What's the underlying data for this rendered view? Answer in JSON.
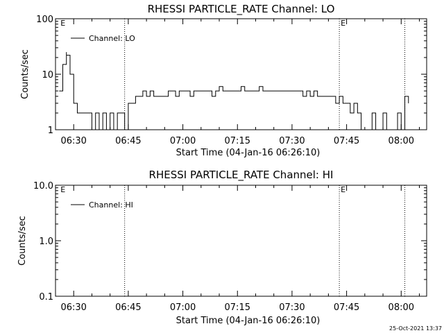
{
  "footer": {
    "timestamp": "25-Oct-2021 13:37"
  },
  "chart_data": [
    {
      "type": "line",
      "title": "RHESSI PARTICLE_RATE Channel: LO",
      "xlabel": "Start Time (04-Jan-16 06:26:10)",
      "ylabel": "Counts/sec",
      "yscale": "log",
      "ylim": [
        1,
        100
      ],
      "xlim": [
        "06:25",
        "08:07"
      ],
      "yticks": [
        "1",
        "10",
        "100"
      ],
      "xticks": [
        "06:30",
        "06:45",
        "07:00",
        "07:15",
        "07:30",
        "07:45",
        "08:00"
      ],
      "legend": {
        "position": "top-left",
        "entries": [
          "Channel: LO"
        ]
      },
      "event_flags": [
        {
          "time": "06:26",
          "label": "E"
        },
        {
          "time": "07:43",
          "label": "E"
        }
      ],
      "vlines": [
        "06:44",
        "07:43",
        "08:01"
      ],
      "series": [
        {
          "name": "Channel: LO",
          "x": [
            "06:26",
            "06:27",
            "06:28",
            "06:28",
            "06:29",
            "06:30",
            "06:31",
            "06:32",
            "06:33",
            "06:34",
            "06:35",
            "06:36",
            "06:37",
            "06:38",
            "06:39",
            "06:40",
            "06:41",
            "06:42",
            "06:43",
            "06:44",
            "06:45",
            "06:46",
            "06:47",
            "06:48",
            "06:49",
            "06:50",
            "06:51",
            "06:52",
            "06:53",
            "06:54",
            "06:55",
            "06:56",
            "06:57",
            "06:58",
            "06:59",
            "07:00",
            "07:01",
            "07:02",
            "07:03",
            "07:04",
            "07:05",
            "07:06",
            "07:07",
            "07:08",
            "07:09",
            "07:10",
            "07:11",
            "07:12",
            "07:13",
            "07:14",
            "07:15",
            "07:16",
            "07:17",
            "07:18",
            "07:19",
            "07:20",
            "07:21",
            "07:22",
            "07:23",
            "07:24",
            "07:25",
            "07:26",
            "07:27",
            "07:28",
            "07:29",
            "07:30",
            "07:31",
            "07:32",
            "07:33",
            "07:34",
            "07:35",
            "07:36",
            "07:37",
            "07:38",
            "07:39",
            "07:40",
            "07:41",
            "07:42",
            "07:43",
            "07:44",
            "07:45",
            "07:46",
            "07:47",
            "07:48",
            "07:49",
            "07:50",
            "07:51",
            "07:52",
            "07:53",
            "07:54",
            "07:55",
            "07:56",
            "07:57",
            "07:58",
            "07:59",
            "08:00",
            "08:01",
            "08:02"
          ],
          "values": [
            5,
            15,
            25,
            22,
            10,
            3,
            2,
            2,
            2,
            2,
            1,
            2,
            1,
            2,
            1,
            2,
            1,
            2,
            2,
            1,
            3,
            3,
            4,
            4,
            5,
            4,
            5,
            4,
            4,
            4,
            4,
            5,
            5,
            4,
            5,
            5,
            5,
            4,
            5,
            5,
            5,
            5,
            5,
            4,
            5,
            6,
            5,
            5,
            5,
            5,
            5,
            6,
            5,
            5,
            5,
            5,
            6,
            5,
            5,
            5,
            5,
            5,
            5,
            5,
            5,
            5,
            5,
            5,
            4,
            5,
            4,
            5,
            4,
            4,
            4,
            4,
            4,
            3,
            4,
            3,
            3,
            2,
            3,
            2,
            1,
            1,
            1,
            2,
            1,
            1,
            2,
            1,
            1,
            1,
            2,
            1,
            4,
            3
          ]
        }
      ]
    },
    {
      "type": "line",
      "title": "RHESSI PARTICLE_RATE Channel: HI",
      "xlabel": "Start Time (04-Jan-16 06:26:10)",
      "ylabel": "Counts/sec",
      "yscale": "log",
      "ylim": [
        0.1,
        10
      ],
      "xlim": [
        "06:25",
        "08:07"
      ],
      "yticks": [
        "0.1",
        "1.0",
        "10.0"
      ],
      "xticks": [
        "06:30",
        "06:45",
        "07:00",
        "07:15",
        "07:30",
        "07:45",
        "08:00"
      ],
      "legend": {
        "position": "top-left",
        "entries": [
          "Channel: HI"
        ]
      },
      "event_flags": [
        {
          "time": "06:26",
          "label": "E"
        },
        {
          "time": "07:43",
          "label": "E"
        }
      ],
      "vlines": [
        "06:44",
        "07:43",
        "08:01"
      ],
      "series": [
        {
          "name": "Channel: HI",
          "x": [],
          "values": []
        }
      ]
    }
  ]
}
